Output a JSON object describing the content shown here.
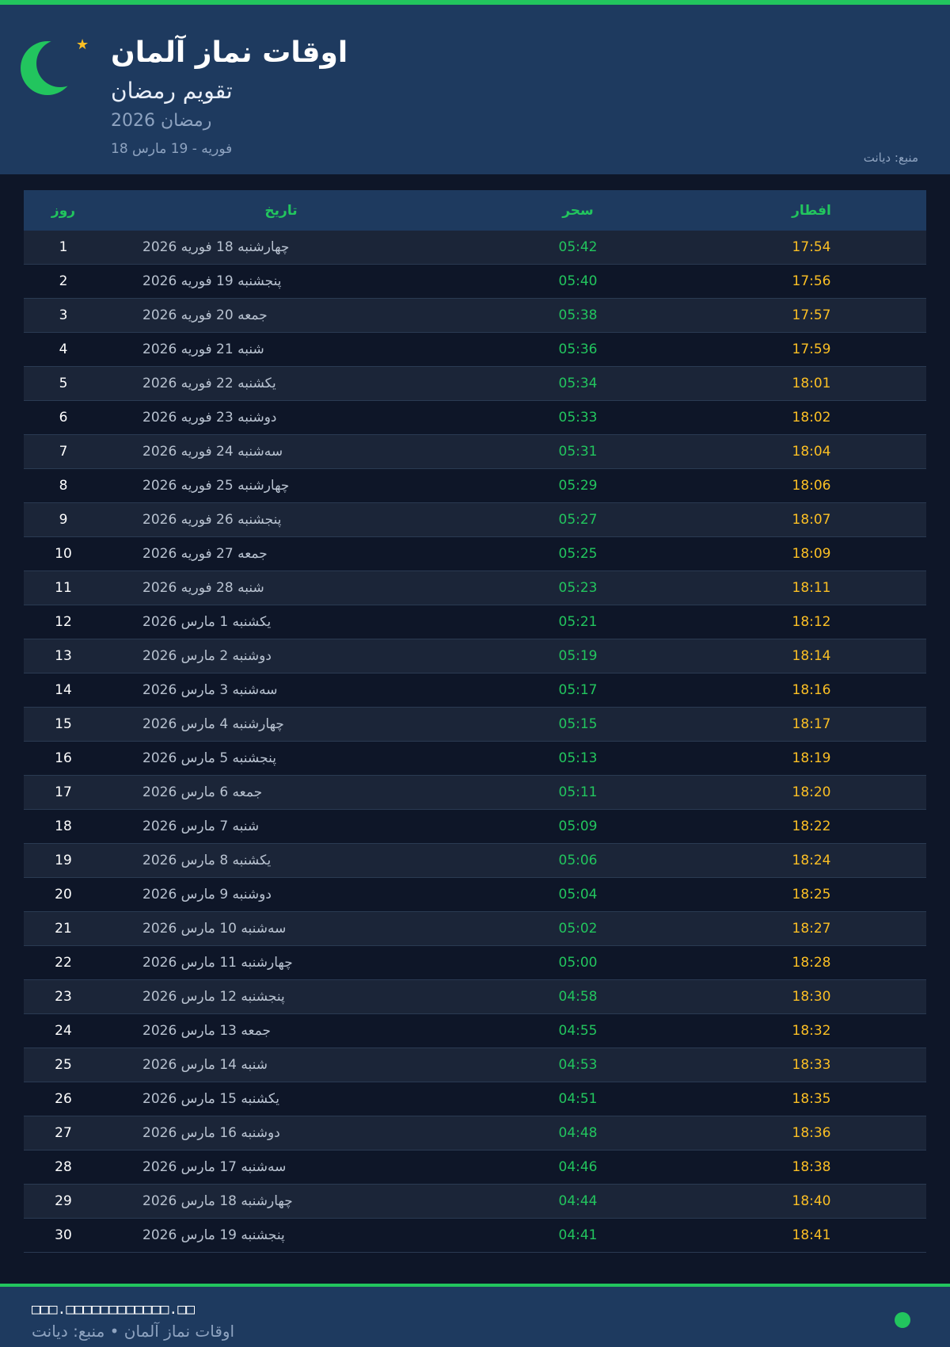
{
  "header": {
    "title": "اوقات نماز آلمان",
    "subtitle": "تقویم رمضان",
    "year": "رمضان 2026",
    "range": "18 فوریه - 19 مارس",
    "source": "منبع: دیانت"
  },
  "colors": {
    "accent": "#22c55e",
    "iftar": "#fbbf24",
    "header_bg": "#1e3a5f",
    "page_bg": "#0e1628"
  },
  "icons": {
    "logo": "crescent-moon-icon",
    "star": "star-icon"
  },
  "table": {
    "columns": {
      "day": "روز",
      "date": "تاریخ",
      "sahar": "سحر",
      "iftar": "افطار"
    },
    "rows": [
      {
        "day": "1",
        "date": "چهارشنبه 18 فوریه 2026",
        "sahar": "05:42",
        "iftar": "17:54"
      },
      {
        "day": "2",
        "date": "پنجشنبه 19 فوریه 2026",
        "sahar": "05:40",
        "iftar": "17:56"
      },
      {
        "day": "3",
        "date": "جمعه 20 فوریه 2026",
        "sahar": "05:38",
        "iftar": "17:57"
      },
      {
        "day": "4",
        "date": "شنبه 21 فوریه 2026",
        "sahar": "05:36",
        "iftar": "17:59"
      },
      {
        "day": "5",
        "date": "یکشنبه 22 فوریه 2026",
        "sahar": "05:34",
        "iftar": "18:01"
      },
      {
        "day": "6",
        "date": "دوشنبه 23 فوریه 2026",
        "sahar": "05:33",
        "iftar": "18:02"
      },
      {
        "day": "7",
        "date": "سه‌شنبه 24 فوریه 2026",
        "sahar": "05:31",
        "iftar": "18:04"
      },
      {
        "day": "8",
        "date": "چهارشنبه 25 فوریه 2026",
        "sahar": "05:29",
        "iftar": "18:06"
      },
      {
        "day": "9",
        "date": "پنجشنبه 26 فوریه 2026",
        "sahar": "05:27",
        "iftar": "18:07"
      },
      {
        "day": "10",
        "date": "جمعه 27 فوریه 2026",
        "sahar": "05:25",
        "iftar": "18:09"
      },
      {
        "day": "11",
        "date": "شنبه 28 فوریه 2026",
        "sahar": "05:23",
        "iftar": "18:11"
      },
      {
        "day": "12",
        "date": "یکشنبه 1 مارس 2026",
        "sahar": "05:21",
        "iftar": "18:12"
      },
      {
        "day": "13",
        "date": "دوشنبه 2 مارس 2026",
        "sahar": "05:19",
        "iftar": "18:14"
      },
      {
        "day": "14",
        "date": "سه‌شنبه 3 مارس 2026",
        "sahar": "05:17",
        "iftar": "18:16"
      },
      {
        "day": "15",
        "date": "چهارشنبه 4 مارس 2026",
        "sahar": "05:15",
        "iftar": "18:17"
      },
      {
        "day": "16",
        "date": "پنجشنبه 5 مارس 2026",
        "sahar": "05:13",
        "iftar": "18:19"
      },
      {
        "day": "17",
        "date": "جمعه 6 مارس 2026",
        "sahar": "05:11",
        "iftar": "18:20"
      },
      {
        "day": "18",
        "date": "شنبه 7 مارس 2026",
        "sahar": "05:09",
        "iftar": "18:22"
      },
      {
        "day": "19",
        "date": "یکشنبه 8 مارس 2026",
        "sahar": "05:06",
        "iftar": "18:24"
      },
      {
        "day": "20",
        "date": "دوشنبه 9 مارس 2026",
        "sahar": "05:04",
        "iftar": "18:25"
      },
      {
        "day": "21",
        "date": "سه‌شنبه 10 مارس 2026",
        "sahar": "05:02",
        "iftar": "18:27"
      },
      {
        "day": "22",
        "date": "چهارشنبه 11 مارس 2026",
        "sahar": "05:00",
        "iftar": "18:28"
      },
      {
        "day": "23",
        "date": "پنجشنبه 12 مارس 2026",
        "sahar": "04:58",
        "iftar": "18:30"
      },
      {
        "day": "24",
        "date": "جمعه 13 مارس 2026",
        "sahar": "04:55",
        "iftar": "18:32"
      },
      {
        "day": "25",
        "date": "شنبه 14 مارس 2026",
        "sahar": "04:53",
        "iftar": "18:33"
      },
      {
        "day": "26",
        "date": "یکشنبه 15 مارس 2026",
        "sahar": "04:51",
        "iftar": "18:35"
      },
      {
        "day": "27",
        "date": "دوشنبه 16 مارس 2026",
        "sahar": "04:48",
        "iftar": "18:36"
      },
      {
        "day": "28",
        "date": "سه‌شنبه 17 مارس 2026",
        "sahar": "04:46",
        "iftar": "18:38"
      },
      {
        "day": "29",
        "date": "چهارشنبه 18 مارس 2026",
        "sahar": "04:44",
        "iftar": "18:40"
      },
      {
        "day": "30",
        "date": "پنجشنبه 19 مارس 2026",
        "sahar": "04:41",
        "iftar": "18:41"
      }
    ]
  },
  "footer": {
    "url": "□□□.□□□□□□□□□□□□.□□",
    "text": "اوقات نماز آلمان • منبع: دیانت"
  }
}
